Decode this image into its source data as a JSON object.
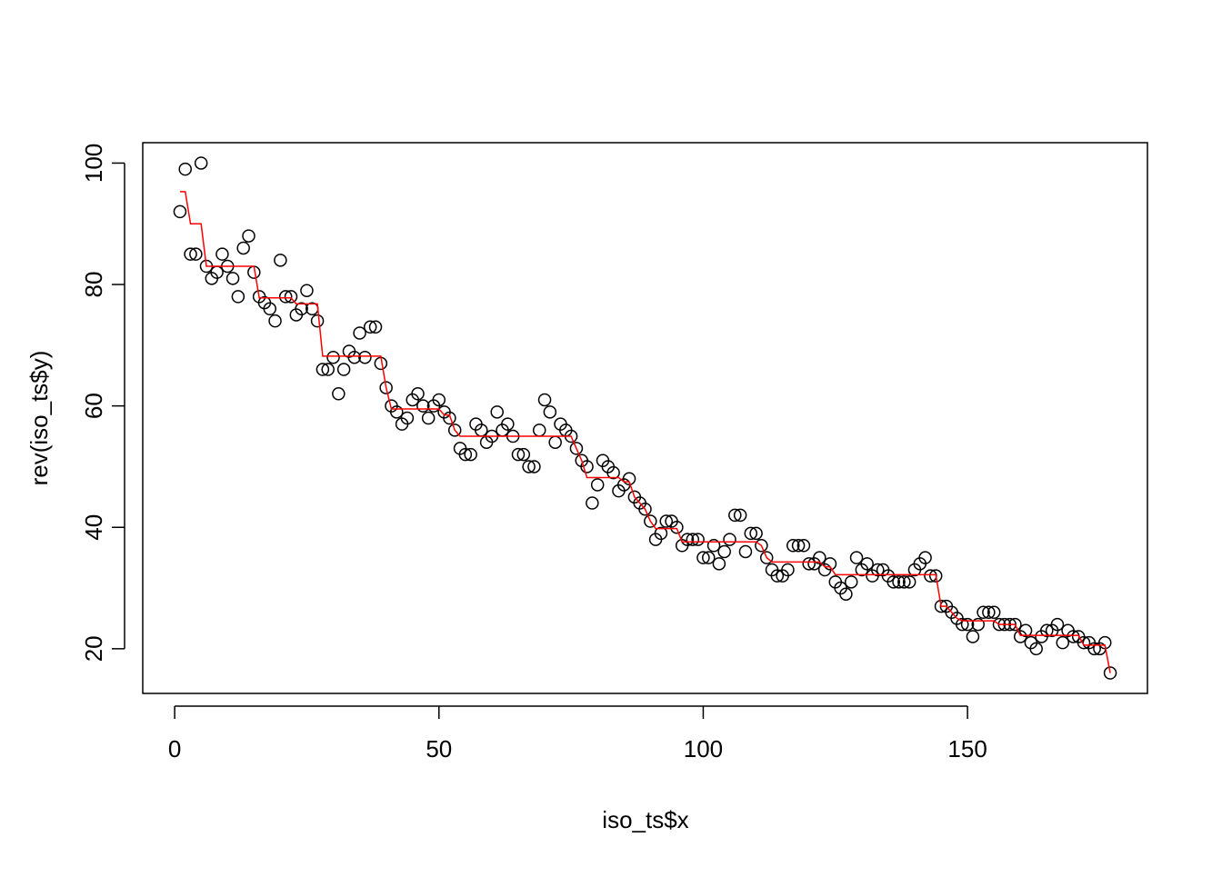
{
  "chart_data": {
    "type": "scatter",
    "xlabel": "iso_ts$x",
    "ylabel": "rev(iso_ts$y)",
    "xlim": [
      -6.04,
      184.04
    ],
    "ylim": [
      12.64,
      103.36
    ],
    "xticks": [
      0,
      50,
      100,
      150
    ],
    "yticks": [
      20,
      40,
      60,
      80,
      100
    ],
    "x": [
      1,
      2,
      3,
      4,
      5,
      6,
      7,
      8,
      9,
      10,
      11,
      12,
      13,
      14,
      15,
      16,
      17,
      18,
      19,
      20,
      21,
      22,
      23,
      24,
      25,
      26,
      27,
      28,
      29,
      30,
      31,
      32,
      33,
      34,
      35,
      36,
      37,
      38,
      39,
      40,
      41,
      42,
      43,
      44,
      45,
      46,
      47,
      48,
      49,
      50,
      51,
      52,
      53,
      54,
      55,
      56,
      57,
      58,
      59,
      60,
      61,
      62,
      63,
      64,
      65,
      66,
      67,
      68,
      69,
      70,
      71,
      72,
      73,
      74,
      75,
      76,
      77,
      78,
      79,
      80,
      81,
      82,
      83,
      84,
      85,
      86,
      87,
      88,
      89,
      90,
      91,
      92,
      93,
      94,
      95,
      96,
      97,
      98,
      99,
      100,
      101,
      102,
      103,
      104,
      105,
      106,
      107,
      108,
      109,
      110,
      111,
      112,
      113,
      114,
      115,
      116,
      117,
      118,
      119,
      120,
      121,
      122,
      123,
      124,
      125,
      126,
      127,
      128,
      129,
      130,
      131,
      132,
      133,
      134,
      135,
      136,
      137,
      138,
      139,
      140,
      141,
      142,
      143,
      144,
      145,
      146,
      147,
      148,
      149,
      150,
      151,
      152,
      153,
      154,
      155,
      156,
      157,
      158,
      159,
      160,
      161,
      162,
      163,
      164,
      165,
      166,
      167,
      168,
      169,
      170,
      171,
      172,
      173,
      174,
      175,
      176,
      177
    ],
    "series": [
      {
        "color": "#000000",
        "values": [
          92,
          99,
          85,
          85,
          100,
          83,
          81,
          82,
          85,
          83,
          81,
          78,
          86,
          88,
          82,
          78,
          77,
          76,
          74,
          84,
          78,
          78,
          75,
          76,
          79,
          76,
          74,
          66,
          66,
          68,
          62,
          66,
          69,
          68,
          72,
          68,
          73,
          73,
          67,
          63,
          60,
          59,
          57,
          58,
          61,
          62,
          60,
          58,
          60,
          61,
          59,
          58,
          56,
          53,
          52,
          52,
          57,
          56,
          54,
          55,
          59,
          56,
          57,
          55,
          52,
          52,
          50,
          50,
          56,
          61,
          59,
          54,
          57,
          56,
          55,
          53,
          51,
          50,
          44,
          47,
          51,
          50,
          49,
          46,
          47,
          48,
          45,
          44,
          43,
          41,
          38,
          39,
          41,
          41,
          40,
          37,
          38,
          38,
          38,
          35,
          35,
          37,
          34,
          36,
          38,
          42,
          42,
          36,
          39,
          39,
          37,
          35,
          33,
          32,
          32,
          33,
          37,
          37,
          37,
          34,
          34,
          35,
          33,
          34,
          31,
          30,
          29,
          31,
          35,
          33,
          34,
          32,
          33,
          33,
          32,
          31,
          31,
          31,
          31,
          33,
          34,
          35,
          32,
          32,
          27,
          27,
          26,
          25,
          24,
          24,
          22,
          24,
          26,
          26,
          26,
          24,
          24,
          24,
          24,
          22,
          23,
          21,
          20,
          22,
          23,
          23,
          24,
          21,
          23,
          22,
          22,
          21,
          21,
          20,
          20,
          21,
          16
        ]
      },
      {
        "type": "line",
        "color": "#ff0000",
        "values": [
          95.3,
          95.3,
          90,
          90,
          90,
          83,
          83,
          83,
          83,
          83,
          83,
          83,
          83,
          83,
          83,
          77.8,
          77.8,
          77.8,
          77.8,
          77.8,
          77.8,
          77.8,
          76.8,
          76.8,
          76.8,
          76.8,
          76.8,
          68.2,
          68.2,
          68.2,
          68.2,
          68.2,
          68.2,
          68.2,
          68.2,
          68.2,
          68.2,
          68.2,
          68.2,
          63,
          59.5,
          59.5,
          59.5,
          59.5,
          59.5,
          59.5,
          59.5,
          59.5,
          59.5,
          59.5,
          58.5,
          58.5,
          56,
          55,
          55,
          55,
          55,
          55,
          55,
          55,
          55,
          55,
          55,
          55,
          55,
          55,
          55,
          55,
          55,
          55,
          55,
          55,
          55,
          55,
          55,
          53,
          51,
          48.2,
          48.2,
          48.2,
          48.2,
          48.2,
          48.2,
          48.2,
          47.5,
          47.5,
          45,
          44,
          43,
          41,
          39.8,
          39.8,
          39.8,
          39.8,
          39.8,
          37.6,
          37.6,
          37.6,
          37.6,
          37.6,
          37.6,
          37.6,
          37.6,
          37.6,
          37.6,
          37.6,
          37.6,
          37.6,
          37.6,
          37.6,
          37,
          35,
          34.3,
          34.3,
          34.3,
          34.3,
          34.3,
          34.3,
          34.3,
          34.3,
          34.3,
          34.3,
          33.5,
          33.5,
          32.2,
          32.2,
          32.2,
          32.2,
          32.2,
          32.2,
          32.2,
          32.2,
          32.2,
          32.2,
          32.2,
          32.2,
          32.2,
          32.2,
          32.2,
          32.2,
          32.2,
          32.2,
          32.2,
          32.2,
          27,
          27,
          26,
          25,
          24.6,
          24.6,
          24.6,
          24.6,
          24.6,
          24.6,
          24.6,
          24,
          24,
          24,
          24,
          22.2,
          22.2,
          22.2,
          22.2,
          22.2,
          22.2,
          22.2,
          22.2,
          22.2,
          22.2,
          22.2,
          22.2,
          20.6,
          20.6,
          20.6,
          20.6,
          20.6,
          16
        ]
      }
    ]
  }
}
